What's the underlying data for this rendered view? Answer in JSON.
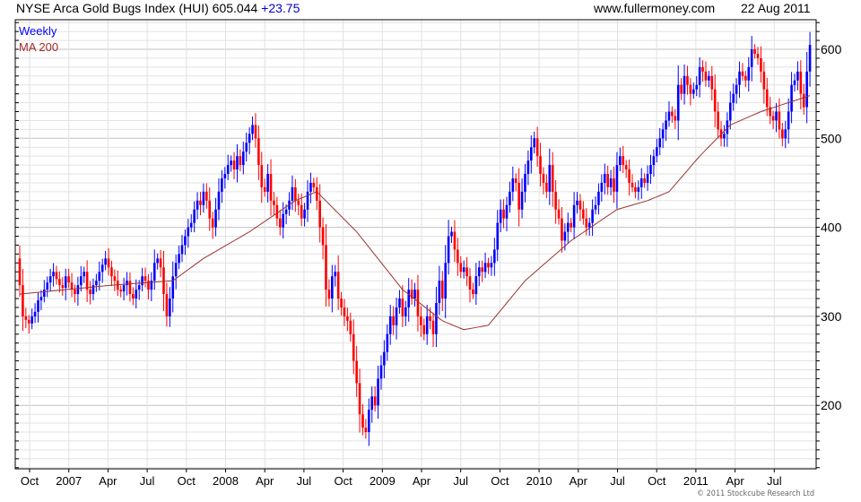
{
  "header": {
    "title": "NYSE Arca Gold Bugs Index (HUI)",
    "last": "605.044",
    "change": "+23.75",
    "site": "www.fullermoney.com",
    "date": "22 Aug 2011"
  },
  "footer": {
    "copyright": "© 2011 Stockcube Research Ltd"
  },
  "colors": {
    "up": "#0000ff",
    "down": "#ff0000",
    "ma": "#993333",
    "change": "#0000cc",
    "grid": "#e2e2e2",
    "major_grid": "#c0c0c0"
  },
  "chart_data": {
    "type": "candlestick",
    "title": "NYSE Arca Gold Bugs Index (HUI)",
    "legend": [
      {
        "name": "Weekly",
        "color": "#0000ff"
      },
      {
        "name": "MA 200",
        "color": "#a52a2a"
      }
    ],
    "legend_placement": "top-left",
    "interval": "weekly",
    "first_week": "2006-09-08",
    "ylim": [
      129,
      633
    ],
    "yticks": [
      200,
      300,
      400,
      500,
      600
    ],
    "xtick_labels": [
      "Oct",
      "2007",
      "Apr",
      "Jul",
      "Oct",
      "2008",
      "Apr",
      "Jul",
      "Oct",
      "2009",
      "Apr",
      "Jul",
      "Oct",
      "2010",
      "Apr",
      "Jul",
      "Oct",
      "2011",
      "Apr",
      "Jul"
    ],
    "closes": [
      335,
      300,
      296,
      292,
      300,
      305,
      318,
      322,
      330,
      338,
      345,
      350,
      342,
      335,
      332,
      345,
      338,
      330,
      325,
      335,
      345,
      350,
      330,
      325,
      335,
      340,
      350,
      358,
      365,
      355,
      345,
      340,
      330,
      328,
      335,
      340,
      325,
      320,
      330,
      335,
      345,
      340,
      330,
      340,
      360,
      365,
      355,
      325,
      300,
      320,
      345,
      360,
      370,
      380,
      390,
      400,
      405,
      420,
      430,
      425,
      440,
      430,
      410,
      400,
      420,
      440,
      455,
      460,
      470,
      475,
      465,
      480,
      470,
      485,
      495,
      505,
      515,
      500,
      470,
      445,
      440,
      460,
      430,
      425,
      410,
      400,
      415,
      420,
      430,
      445,
      430,
      425,
      410,
      420,
      440,
      450,
      445,
      430,
      400,
      380,
      330,
      320,
      345,
      350,
      320,
      310,
      300,
      295,
      280,
      250,
      225,
      190,
      175,
      170,
      195,
      210,
      200,
      230,
      245,
      260,
      280,
      300,
      290,
      310,
      320,
      300,
      310,
      330,
      320,
      330,
      300,
      290,
      280,
      300,
      295,
      280,
      315,
      340,
      320,
      360,
      390,
      395,
      375,
      360,
      350,
      355,
      345,
      330,
      325,
      345,
      355,
      350,
      360,
      355,
      360,
      375,
      405,
      420,
      410,
      425,
      440,
      455,
      450,
      420,
      440,
      460,
      475,
      490,
      500,
      480,
      460,
      450,
      440,
      470,
      440,
      420,
      410,
      385,
      395,
      405,
      400,
      425,
      430,
      420,
      410,
      400,
      405,
      420,
      425,
      440,
      450,
      460,
      445,
      455,
      440,
      470,
      480,
      470,
      465,
      450,
      445,
      440,
      445,
      455,
      450,
      460,
      470,
      480,
      490,
      500,
      510,
      520,
      530,
      525,
      520,
      560,
      550,
      570,
      560,
      550,
      555,
      560,
      580,
      575,
      565,
      570,
      555,
      530,
      510,
      500,
      505,
      520,
      540,
      550,
      560,
      575,
      570,
      565,
      580,
      600,
      595,
      590,
      575,
      555,
      535,
      525,
      520,
      530,
      510,
      500,
      510,
      530,
      560,
      565,
      575,
      550,
      535,
      575,
      605
    ],
    "ma200": [
      [
        0,
        325
      ],
      [
        30,
        335
      ],
      [
        50,
        340
      ],
      [
        60,
        365
      ],
      [
        75,
        395
      ],
      [
        90,
        430
      ],
      [
        97,
        440
      ],
      [
        110,
        395
      ],
      [
        125,
        330
      ],
      [
        138,
        295
      ],
      [
        145,
        285
      ],
      [
        153,
        290
      ],
      [
        165,
        340
      ],
      [
        180,
        385
      ],
      [
        195,
        420
      ],
      [
        205,
        430
      ],
      [
        212,
        440
      ],
      [
        222,
        480
      ],
      [
        232,
        515
      ],
      [
        242,
        530
      ],
      [
        258,
        548
      ]
    ]
  }
}
